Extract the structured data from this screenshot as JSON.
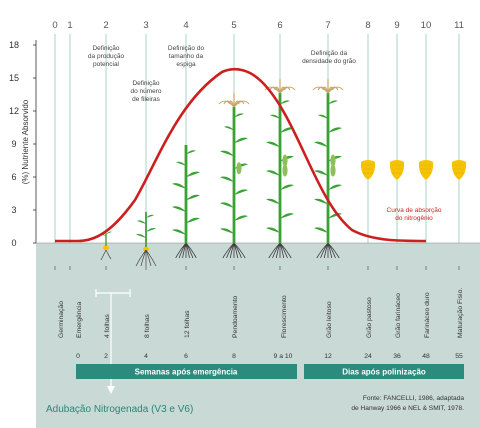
{
  "y_axis": {
    "label": "(%) Nutriente Absorvido",
    "ticks": [
      "0",
      "3",
      "6",
      "9",
      "12",
      "15",
      "18"
    ]
  },
  "stages": [
    "0",
    "1",
    "2",
    "3",
    "4",
    "5",
    "6",
    "7",
    "8",
    "9",
    "10",
    "11"
  ],
  "annotations": {
    "a1": [
      "Definição",
      "da produção",
      "potencial"
    ],
    "a2": [
      "Definição",
      "do número",
      "de fileiras"
    ],
    "a3": [
      "Definição do",
      "tamanho da",
      "espiga"
    ],
    "a4": [
      "Definição da",
      "densidade do grão"
    ],
    "curve": [
      "Curva de absorção",
      "do nitrogênio"
    ]
  },
  "stage_names": [
    "Germinação",
    "Emergência",
    "4 folhas",
    "8 folhas",
    "12 folhas",
    "Pendoamento",
    "Florescimento",
    "Grão leitoso",
    "Grão pastoso",
    "Grão farináceo",
    "Farináceo duro",
    "Maturação Fisio."
  ],
  "weeks": [
    "0",
    "2",
    "4",
    "6",
    "8",
    "9 a 10"
  ],
  "days": [
    "12",
    "24",
    "36",
    "48",
    "55"
  ],
  "bars": {
    "weeks_label": "Semanas após emergência",
    "days_label": "Dias após polinização"
  },
  "n_label": "Adubação Nitrogenada (V3 e V6)",
  "source": [
    "Fonte: FANCELLI, 1986, adaptada",
    "de Hanway 1966 e NEL & SMIT, 1978."
  ],
  "colors": {
    "ground": "#c9dad6",
    "bar": "#2b8b7c",
    "curve": "#cc1f1f",
    "plant": "#3aa135",
    "grain": "#f5c400",
    "tassel": "#c9a86a",
    "stage_num": "#555555",
    "text_dark": "#333333",
    "n_label": "#2a8678"
  }
}
